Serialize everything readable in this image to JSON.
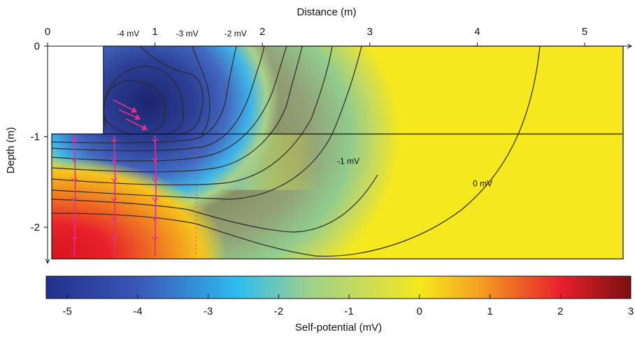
{
  "chart_data": {
    "type": "heatmap",
    "xlabel": "Distance (m)",
    "ylabel": "Depth (m)",
    "x_ticks": [
      "0",
      "1",
      "2",
      "3",
      "4",
      "5"
    ],
    "y_ticks": [
      "0",
      "-1",
      "-2"
    ],
    "xlim": [
      0,
      5.4
    ],
    "ylim": [
      -2.35,
      0
    ],
    "grid": false,
    "colorbar": {
      "label": "Self-potential (mV)",
      "ticks": [
        "-5",
        "-4",
        "-3",
        "-2",
        "-1",
        "0",
        "1",
        "2",
        "3"
      ],
      "range": [
        -5.3,
        3.0
      ],
      "colormap": [
        "#22308a",
        "#3a58b8",
        "#2fbdee",
        "#9fd08c",
        "#f5e81e",
        "#f5a021",
        "#e8202c",
        "#7a1010"
      ]
    },
    "contour_labels": [
      {
        "text": "-4 mV",
        "x": 0.75
      },
      {
        "text": "-3 mV",
        "x": 1.3
      },
      {
        "text": "-2 mV",
        "x": 1.75
      },
      {
        "text": "-1 mV",
        "x": 2.8,
        "y": -1.3
      },
      {
        "text": "0 mV",
        "x": 4.05,
        "y": -1.55
      }
    ],
    "geometry": {
      "upper_block_x_start": 0.52,
      "interface_depth": -0.97,
      "source_center": {
        "x": 0.8,
        "y": -0.7
      }
    },
    "flow_lines_x": [
      0.25,
      0.62,
      1.0,
      1.38
    ]
  }
}
